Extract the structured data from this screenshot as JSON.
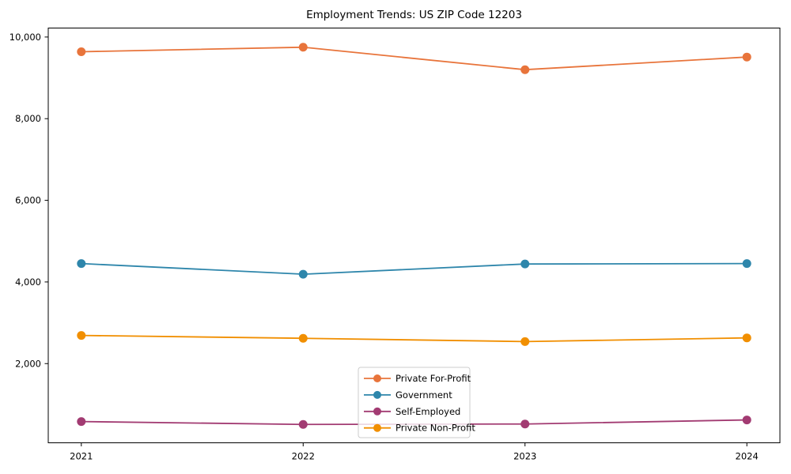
{
  "chart_data": {
    "type": "line",
    "title": "Employment Trends: US ZIP Code 12203",
    "xlabel": "",
    "ylabel": "",
    "categories": [
      "2021",
      "2022",
      "2023",
      "2024"
    ],
    "series": [
      {
        "name": "Private For-Profit",
        "color": "#E8743B",
        "values": [
          9640,
          9750,
          9200,
          9510
        ]
      },
      {
        "name": "Government",
        "color": "#2E86AB",
        "values": [
          4450,
          4190,
          4440,
          4450
        ]
      },
      {
        "name": "Self-Employed",
        "color": "#A23B72",
        "values": [
          580,
          510,
          520,
          620
        ]
      },
      {
        "name": "Private Non-Profit",
        "color": "#F18F01",
        "values": [
          2690,
          2620,
          2540,
          2630
        ]
      }
    ],
    "ylim": [
      60,
      10220
    ],
    "yticks": [
      2000,
      4000,
      6000,
      8000,
      10000
    ],
    "ytick_labels": [
      "2,000",
      "4,000",
      "6,000",
      "8,000",
      "10,000"
    ],
    "grid": false,
    "legend": {
      "position": "lower-center",
      "entries": [
        "Private For-Profit",
        "Government",
        "Self-Employed",
        "Private Non-Profit"
      ]
    }
  }
}
